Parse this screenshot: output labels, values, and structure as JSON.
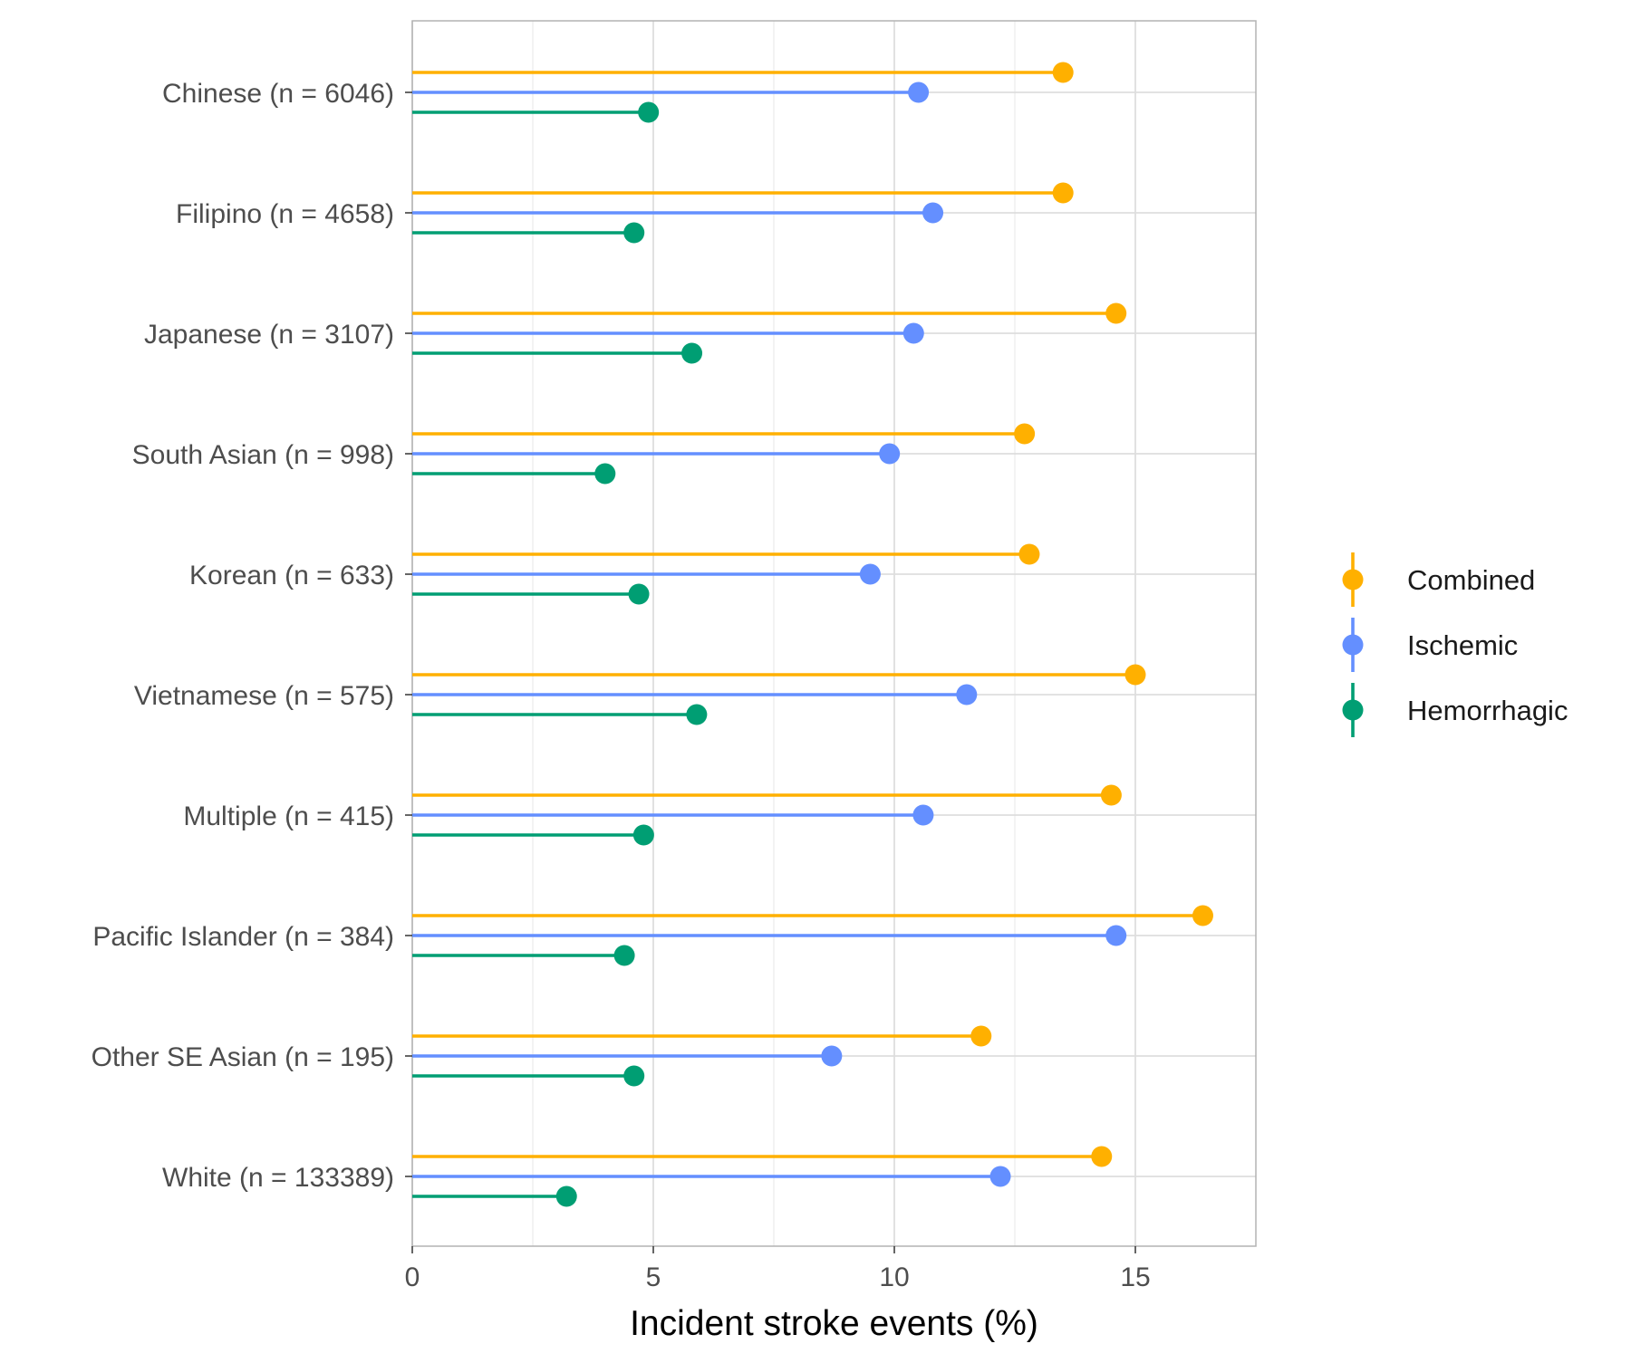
{
  "chart_data": {
    "type": "lollipop",
    "title": "",
    "xlabel": "Incident stroke events (%)",
    "ylabel": "",
    "xlim": [
      0,
      17.5
    ],
    "x_ticks": [
      0,
      5,
      10,
      15
    ],
    "grid": true,
    "legend_position": "right",
    "categories": [
      "Chinese (n = 6046)",
      "Filipino (n = 4658)",
      "Japanese (n = 3107)",
      "South Asian (n = 998)",
      "Korean (n = 633)",
      "Vietnamese (n = 575)",
      "Multiple (n = 415)",
      "Pacific Islander (n = 384)",
      "Other SE Asian (n = 195)",
      "White (n = 133389)"
    ],
    "series": [
      {
        "name": "Combined",
        "color": "#FFB000",
        "values": [
          13.5,
          13.5,
          14.6,
          12.7,
          12.8,
          15.0,
          14.5,
          16.4,
          11.8,
          14.3
        ]
      },
      {
        "name": "Ischemic",
        "color": "#648FFF",
        "values": [
          10.5,
          10.8,
          10.4,
          9.9,
          9.5,
          11.5,
          10.6,
          14.6,
          8.7,
          12.2
        ]
      },
      {
        "name": "Hemorrhagic",
        "color": "#009E73",
        "values": [
          4.9,
          4.6,
          5.8,
          4.0,
          4.7,
          5.9,
          4.8,
          4.4,
          4.6,
          3.2
        ]
      }
    ]
  }
}
